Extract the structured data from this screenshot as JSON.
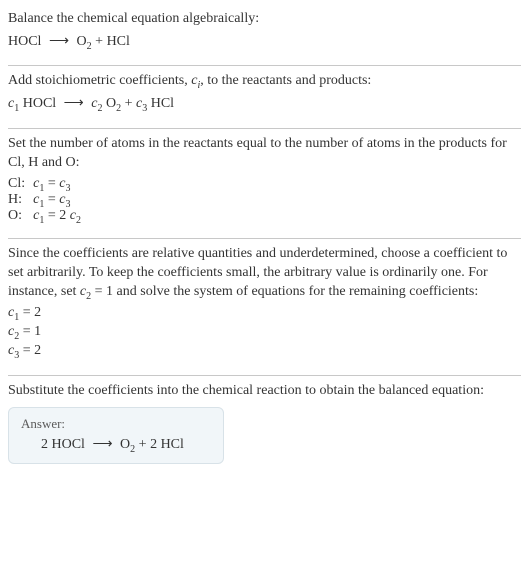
{
  "section1": {
    "intro": "Balance the chemical equation algebraically:",
    "lhs": "HOCl",
    "arrow": "⟶",
    "o2_base": "O",
    "o2_sub": "2",
    "plus": " + ",
    "hcl": "HCl"
  },
  "section2": {
    "intro_a": "Add stoichiometric coefficients, ",
    "ci_c": "c",
    "ci_i": "i",
    "intro_b": ", to the reactants and products:",
    "c1": "c",
    "s1": "1",
    "hocl": " HOCl",
    "arrow": "⟶",
    "c2": "c",
    "s2": "2",
    "o2_base": " O",
    "o2_sub": "2",
    "plus": " + ",
    "c3": "c",
    "s3": "3",
    "hcl": " HCl"
  },
  "section3": {
    "intro": "Set the number of atoms in the reactants equal to the number of atoms in the products for Cl, H and O:",
    "rows": [
      {
        "el": "Cl:",
        "lhs_c": "c",
        "lhs_s": "1",
        "eq": " = ",
        "rhs_c": "c",
        "rhs_s": "3",
        "rhs_mult": ""
      },
      {
        "el": "H:",
        "lhs_c": "c",
        "lhs_s": "1",
        "eq": " = ",
        "rhs_c": "c",
        "rhs_s": "3",
        "rhs_mult": ""
      },
      {
        "el": "O:",
        "lhs_c": "c",
        "lhs_s": "1",
        "eq": " = ",
        "rhs_c": "c",
        "rhs_s": "2",
        "rhs_mult": "2 "
      }
    ]
  },
  "section4": {
    "intro_a": "Since the coefficients are relative quantities and underdetermined, choose a coefficient to set arbitrarily. To keep the coefficients small, the arbitrary value is ordinarily one. For instance, set ",
    "set_c": "c",
    "set_s": "2",
    "set_eq": " = 1",
    "intro_b": " and solve the system of equations for the remaining coefficients:",
    "lines": [
      {
        "c": "c",
        "s": "1",
        "rest": " = 2"
      },
      {
        "c": "c",
        "s": "2",
        "rest": " = 1"
      },
      {
        "c": "c",
        "s": "3",
        "rest": " = 2"
      }
    ]
  },
  "section5": {
    "intro": "Substitute the coefficients into the chemical reaction to obtain the balanced equation:",
    "answer_label": "Answer:",
    "lhs": "2 HOCl",
    "arrow": "⟶",
    "o2_pre": "O",
    "o2_sub": "2",
    "plus": " + ",
    "rhs": "2 HCl"
  }
}
